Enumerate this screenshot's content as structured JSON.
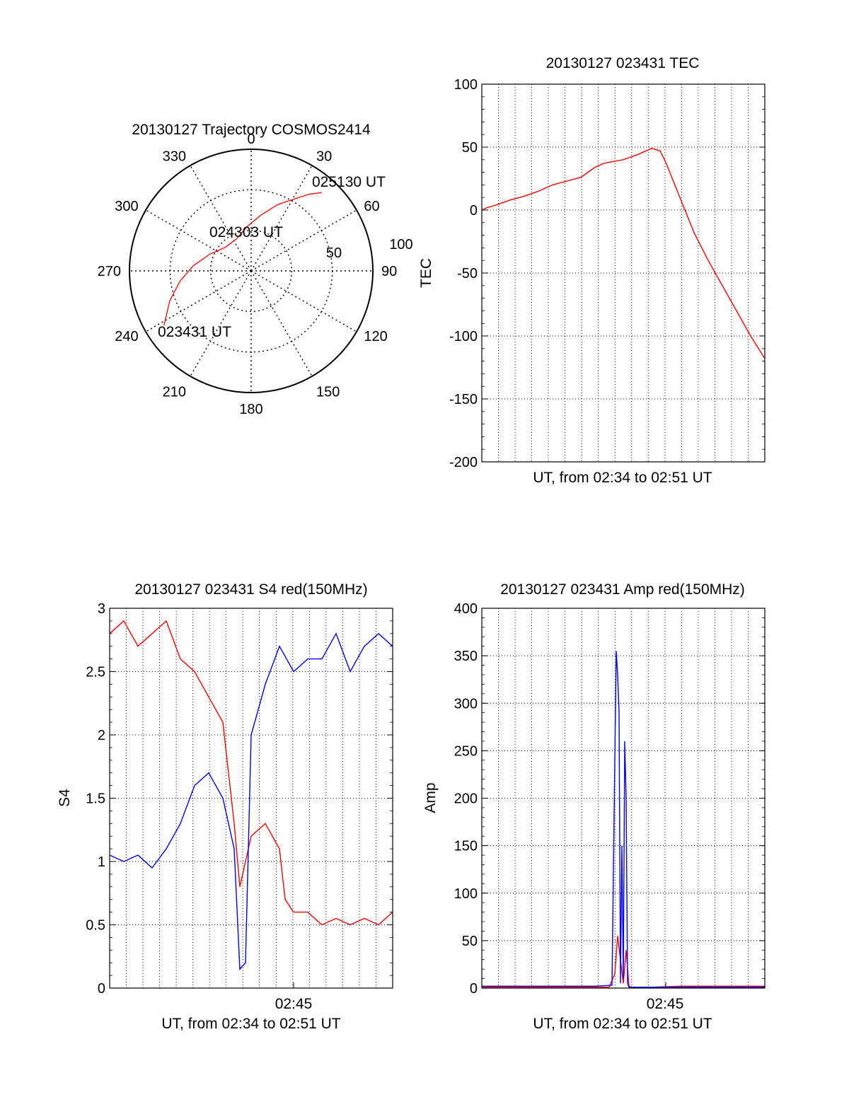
{
  "chart_data": [
    {
      "type": "polar",
      "title": "20130127 Trajectory COSMOS2414",
      "angle_labels": [
        "0",
        "30",
        "60",
        "90",
        "120",
        "150",
        "180",
        "210",
        "240",
        "270",
        "300",
        "330"
      ],
      "radial_labels": [
        "50",
        "100"
      ],
      "series": [
        {
          "color": "#ff0000",
          "points": [
            {
              "azimuth": 238,
              "elevation": 14
            },
            {
              "azimuth": 250,
              "elevation": 26
            },
            {
              "azimuth": 262,
              "elevation": 37
            },
            {
              "azimuth": 275,
              "elevation": 47
            },
            {
              "azimuth": 292,
              "elevation": 57
            },
            {
              "azimuth": 312,
              "elevation": 64
            },
            {
              "azimuth": 335,
              "elevation": 64
            },
            {
              "azimuth": 355,
              "elevation": 57
            },
            {
              "azimuth": 10,
              "elevation": 48
            },
            {
              "azimuth": 22,
              "elevation": 37
            },
            {
              "azimuth": 31,
              "elevation": 28
            },
            {
              "azimuth": 37,
              "elevation": 19
            },
            {
              "azimuth": 42,
              "elevation": 12
            }
          ]
        }
      ],
      "annotations": [
        "025130 UT",
        "024303 UT",
        "023431 UT"
      ]
    },
    {
      "type": "line",
      "title": "20130127 023431 TEC",
      "xlabel": "UT, from 02:34 to 02:51 UT",
      "ylabel": "TEC",
      "ylim": [
        -200,
        100
      ],
      "yticks": [
        "100",
        "50",
        "0",
        "-50",
        "-100",
        "-150",
        "-200"
      ],
      "grid": true,
      "series": [
        {
          "color": "#ff0000",
          "x": [
            0,
            0.02,
            0.05,
            0.1,
            0.15,
            0.2,
            0.25,
            0.3,
            0.35,
            0.4,
            0.43,
            0.45,
            0.5,
            0.55,
            0.58,
            0.6,
            0.63,
            0.65,
            0.7,
            0.75,
            0.8,
            0.85,
            0.9,
            0.95,
            1.0
          ],
          "y": [
            0,
            2,
            4,
            8,
            11,
            15,
            20,
            23,
            26,
            34,
            37,
            38,
            40,
            44,
            47,
            49,
            47,
            38,
            10,
            -18,
            -40,
            -60,
            -80,
            -100,
            -118
          ]
        }
      ]
    },
    {
      "type": "line",
      "title": "20130127 023431 S4 red(150MHz)",
      "xlabel": "UT, from 02:34 to 02:51 UT",
      "ylabel": "S4",
      "ylim": [
        0,
        3
      ],
      "yticks": [
        "0",
        "0.5",
        "1",
        "1.5",
        "2",
        "2.5",
        "3"
      ],
      "xtick_label": "02:45",
      "grid": true,
      "series": [
        {
          "color": "#ff0000",
          "x": [
            0,
            0.05,
            0.1,
            0.15,
            0.2,
            0.25,
            0.3,
            0.35,
            0.4,
            0.44,
            0.46,
            0.5,
            0.55,
            0.6,
            0.62,
            0.65,
            0.7,
            0.75,
            0.8,
            0.85,
            0.9,
            0.95,
            1.0
          ],
          "y": [
            2.8,
            2.9,
            2.7,
            2.8,
            2.9,
            2.6,
            2.5,
            2.3,
            2.1,
            1.3,
            0.8,
            1.2,
            1.3,
            1.1,
            0.7,
            0.6,
            0.6,
            0.5,
            0.55,
            0.5,
            0.55,
            0.5,
            0.6
          ]
        },
        {
          "color": "#0000ff",
          "x": [
            0,
            0.05,
            0.1,
            0.15,
            0.2,
            0.25,
            0.3,
            0.35,
            0.4,
            0.44,
            0.46,
            0.48,
            0.5,
            0.55,
            0.6,
            0.65,
            0.7,
            0.75,
            0.8,
            0.85,
            0.9,
            0.95,
            1.0
          ],
          "y": [
            1.05,
            1.0,
            1.05,
            0.95,
            1.1,
            1.3,
            1.6,
            1.7,
            1.5,
            1.1,
            0.15,
            0.2,
            2.0,
            2.4,
            2.7,
            2.5,
            2.6,
            2.6,
            2.8,
            2.5,
            2.7,
            2.8,
            2.7
          ]
        }
      ]
    },
    {
      "type": "line",
      "title": "20130127 023431 Amp red(150MHz)",
      "xlabel": "UT, from 02:34 to 02:51 UT",
      "ylabel": "Amp",
      "ylim": [
        0,
        400
      ],
      "yticks": [
        "0",
        "50",
        "100",
        "150",
        "200",
        "250",
        "300",
        "350",
        "400"
      ],
      "xtick_label": "02:45",
      "grid": true,
      "series": [
        {
          "color": "#ff0000",
          "x": [
            0,
            0.45,
            0.47,
            0.48,
            0.49,
            0.5,
            0.51,
            0.52,
            0.53,
            0.6,
            0.7,
            1.0
          ],
          "y": [
            1,
            1,
            15,
            55,
            30,
            5,
            40,
            2,
            1,
            1,
            2,
            2
          ]
        },
        {
          "color": "#0000ff",
          "x": [
            0,
            0.2,
            0.4,
            0.46,
            0.47,
            0.475,
            0.48,
            0.485,
            0.49,
            0.495,
            0.5,
            0.505,
            0.51,
            0.515,
            0.52,
            0.53,
            0.6,
            1.0
          ],
          "y": [
            2,
            2,
            2,
            3,
            240,
            355,
            330,
            290,
            5,
            150,
            10,
            260,
            200,
            5,
            1,
            1,
            1,
            1
          ]
        }
      ]
    }
  ]
}
